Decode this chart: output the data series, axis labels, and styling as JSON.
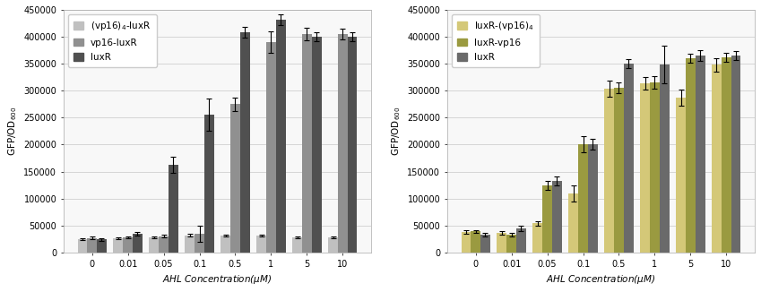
{
  "left": {
    "xlabel": "AHL Concentration(μM)",
    "ylabel": "GFP/OD₆₀₀",
    "categories": [
      "0",
      "0.01",
      "0.05",
      "0.1",
      "0.5",
      "1",
      "5",
      "10"
    ],
    "series": [
      {
        "label": "(vp16)₄-luxR",
        "color": "#c0c0c0",
        "values": [
          25000,
          26000,
          28000,
          32000,
          31000,
          31000,
          28000,
          28000
        ],
        "errors": [
          1500,
          1500,
          2000,
          2500,
          2000,
          2000,
          2000,
          2000
        ]
      },
      {
        "label": "vp16-luxR",
        "color": "#909090",
        "values": [
          27000,
          28000,
          30000,
          34000,
          275000,
          390000,
          405000,
          405000
        ],
        "errors": [
          2000,
          2000,
          2500,
          15000,
          12000,
          20000,
          12000,
          10000
        ]
      },
      {
        "label": "luxR",
        "color": "#505050",
        "values": [
          24000,
          35000,
          162000,
          255000,
          408000,
          432000,
          400000,
          400000
        ],
        "errors": [
          2000,
          3000,
          15000,
          30000,
          10000,
          10000,
          8000,
          8000
        ]
      }
    ],
    "ylim": [
      0,
      450000
    ],
    "yticks": [
      0,
      50000,
      100000,
      150000,
      200000,
      250000,
      300000,
      350000,
      400000,
      450000
    ]
  },
  "right": {
    "xlabel": "AHL Concentration(μM)",
    "ylabel": "GFP/OD₆₀₀",
    "categories": [
      "0",
      "0.01",
      "0.05",
      "0.1",
      "0.5",
      "1",
      "5",
      "10"
    ],
    "series": [
      {
        "label": "luxR-(vp16)₄",
        "color": "#d4c878",
        "values": [
          38000,
          36000,
          54000,
          110000,
          304000,
          314000,
          287000,
          348000
        ],
        "errors": [
          3000,
          3000,
          4000,
          15000,
          15000,
          12000,
          15000,
          12000
        ]
      },
      {
        "label": "luxR-vp16",
        "color": "#9a9a40",
        "values": [
          39000,
          33000,
          124000,
          200000,
          305000,
          315000,
          360000,
          362000
        ],
        "errors": [
          3000,
          3000,
          8000,
          15000,
          10000,
          12000,
          8000,
          8000
        ]
      },
      {
        "label": "luxR",
        "color": "#6a6a6a",
        "values": [
          33000,
          44000,
          133000,
          200000,
          350000,
          348000,
          365000,
          365000
        ],
        "errors": [
          3000,
          5000,
          8000,
          10000,
          8000,
          35000,
          10000,
          8000
        ]
      }
    ],
    "ylim": [
      0,
      450000
    ],
    "yticks": [
      0,
      50000,
      100000,
      150000,
      200000,
      250000,
      300000,
      350000,
      400000,
      450000
    ]
  },
  "bg_color": "#ffffff",
  "plot_bg": "#f8f8f8",
  "bar_width": 0.27,
  "fontsize_label": 7.5,
  "fontsize_tick": 7,
  "fontsize_legend": 7.5
}
